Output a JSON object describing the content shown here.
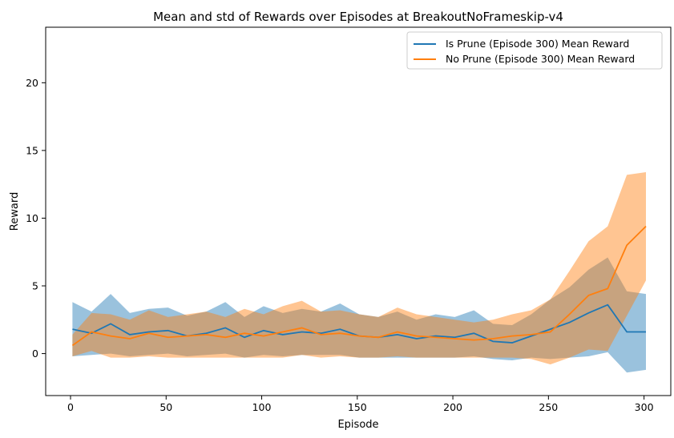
{
  "chart_data": {
    "type": "line",
    "title": "Mean and std of Rewards over Episodes at BreakoutNoFrameskip-v4",
    "xlabel": "Episode",
    "ylabel": "Reward",
    "xlim": [
      -13,
      314
    ],
    "ylim": [
      -3.1,
      24.1
    ],
    "xticks": [
      0,
      50,
      100,
      150,
      200,
      250,
      300
    ],
    "yticks": [
      0,
      5,
      10,
      15,
      20
    ],
    "grid": false,
    "legend_position": "top-right",
    "series": [
      {
        "name": "Is Prune (Episode 300) Mean Reward",
        "color": "#1f77b4",
        "band_color": "#1f77b4",
        "x_start": 1,
        "x_step": 10,
        "mean": [
          1.8,
          1.5,
          2.2,
          1.4,
          1.6,
          1.7,
          1.3,
          1.5,
          1.9,
          1.2,
          1.7,
          1.4,
          1.6,
          1.5,
          1.8,
          1.3,
          1.2,
          1.4,
          1.1,
          1.3,
          1.2,
          1.5,
          0.9,
          0.8,
          1.3,
          1.8,
          2.3,
          3.0,
          3.6,
          1.6,
          1.6
        ],
        "std": [
          2.0,
          1.6,
          2.2,
          1.6,
          1.7,
          1.7,
          1.5,
          1.6,
          1.9,
          1.5,
          1.8,
          1.6,
          1.7,
          1.6,
          1.9,
          1.6,
          1.5,
          1.7,
          1.4,
          1.6,
          1.5,
          1.7,
          1.3,
          1.3,
          1.6,
          2.2,
          2.6,
          3.2,
          3.5,
          3.0,
          2.8
        ]
      },
      {
        "name": "No Prune (Episode 300) Mean Reward",
        "color": "#ff7f0e",
        "band_color": "#ff7f0e",
        "x_start": 1,
        "x_step": 10,
        "mean": [
          0.6,
          1.6,
          1.3,
          1.1,
          1.5,
          1.2,
          1.3,
          1.4,
          1.2,
          1.5,
          1.3,
          1.6,
          1.9,
          1.4,
          1.5,
          1.3,
          1.2,
          1.6,
          1.3,
          1.2,
          1.1,
          1.0,
          1.1,
          1.3,
          1.4,
          1.6,
          2.9,
          4.3,
          4.8,
          8.0,
          9.4
        ],
        "std": [
          0.8,
          1.4,
          1.6,
          1.4,
          1.7,
          1.5,
          1.6,
          1.7,
          1.5,
          1.8,
          1.6,
          1.9,
          2.0,
          1.7,
          1.7,
          1.6,
          1.5,
          1.8,
          1.6,
          1.5,
          1.4,
          1.3,
          1.4,
          1.6,
          1.8,
          2.4,
          3.2,
          4.0,
          4.6,
          5.2,
          4.0
        ]
      }
    ]
  }
}
